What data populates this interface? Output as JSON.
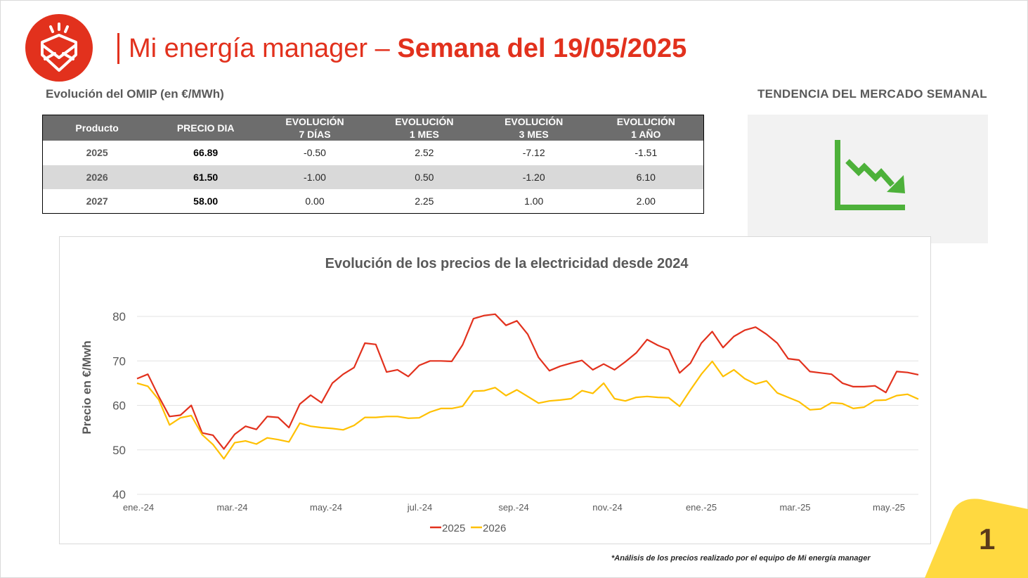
{
  "header": {
    "title_main": "Mi energía manager",
    "title_dash": "–",
    "title_week": "Semana del 19/05/2025",
    "logo_icon": "envelope-sun-icon",
    "brand_color": "#e2311d"
  },
  "omip": {
    "title": "Evolución del OMIP (en €/MWh)",
    "columns": [
      [
        "Producto"
      ],
      [
        "PRECIO DIA"
      ],
      [
        "EVOLUCIÓN",
        "7 DÍAS"
      ],
      [
        "EVOLUCIÓN",
        "1 MES"
      ],
      [
        "EVOLUCIÓN",
        "3 MES"
      ],
      [
        "EVOLUCIÓN",
        "1 AÑO"
      ]
    ],
    "rows": [
      [
        "2025",
        "66.89",
        "-0.50",
        "2.52",
        "-7.12",
        "-1.51"
      ],
      [
        "2026",
        "61.50",
        "-1.00",
        "0.50",
        "-1.20",
        "6.10"
      ],
      [
        "2027",
        "58.00",
        "0.00",
        "2.25",
        "1.00",
        "2.00"
      ]
    ]
  },
  "trend": {
    "title": "TENDENCIA DEL MERCADO SEMANAL",
    "icon": "downtrend-chart-icon",
    "color": "#4db13a"
  },
  "chart_data": {
    "type": "line",
    "title": "Evolución de los precios de la electricidad desde 2024",
    "xlabel": "",
    "ylabel": "Precio en €/Mwh",
    "ylim": [
      40,
      80
    ],
    "yticks": [
      40,
      50,
      60,
      70,
      80
    ],
    "grid": true,
    "legend": "bottom",
    "x_tick_labels": [
      "ene.-24",
      "mar.-24",
      "may.-24",
      "jul.-24",
      "sep.-24",
      "nov.-24",
      "ene.-25",
      "mar.-25",
      "may.-25"
    ],
    "series": [
      {
        "name": "2025",
        "color": "#e2311d",
        "values": [
          66.0,
          67.0,
          62.0,
          57.5,
          57.8,
          60.0,
          53.8,
          53.3,
          50.2,
          53.5,
          55.3,
          54.6,
          57.5,
          57.3,
          55.0,
          60.3,
          62.3,
          60.6,
          65.0,
          67.0,
          68.5,
          74.0,
          73.7,
          67.5,
          68.0,
          66.5,
          69.0,
          70.0,
          70.0,
          69.9,
          73.6,
          79.5,
          80.2,
          80.5,
          78.0,
          79.0,
          76.0,
          70.8,
          67.8,
          68.8,
          69.5,
          70.1,
          68.0,
          69.3,
          68.0,
          69.8,
          71.8,
          74.8,
          73.5,
          72.5,
          67.3,
          69.5,
          74.0,
          76.6,
          73.0,
          75.5,
          76.9,
          77.6,
          76.0,
          74.0,
          70.5,
          70.2,
          67.6,
          67.3,
          67.0,
          65.0,
          64.2,
          64.2,
          64.4,
          62.9,
          67.6,
          67.4,
          66.9
        ]
      },
      {
        "name": "2026",
        "color": "#ffc000",
        "values": [
          65.0,
          64.3,
          61.3,
          55.6,
          57.2,
          57.7,
          53.4,
          51.2,
          48.0,
          51.6,
          52.0,
          51.3,
          52.7,
          52.3,
          51.8,
          56.0,
          55.3,
          55.0,
          54.8,
          54.5,
          55.5,
          57.3,
          57.3,
          57.5,
          57.5,
          57.1,
          57.2,
          58.5,
          59.3,
          59.3,
          59.8,
          63.2,
          63.3,
          64.0,
          62.2,
          63.5,
          62.0,
          60.5,
          61.0,
          61.2,
          61.5,
          63.3,
          62.7,
          65.0,
          61.5,
          61.0,
          61.8,
          62.0,
          61.8,
          61.7,
          59.8,
          63.5,
          67.0,
          69.9,
          66.5,
          68.0,
          66.0,
          64.8,
          65.5,
          62.8,
          61.8,
          60.8,
          59.0,
          59.2,
          60.6,
          60.4,
          59.3,
          59.6,
          61.1,
          61.2,
          62.2,
          62.5,
          61.4
        ]
      }
    ]
  },
  "footnote": "*Análisis de los precios realizado por el equipo de Mi energía manager",
  "page_number": "1",
  "corner_color": "#ffd940"
}
